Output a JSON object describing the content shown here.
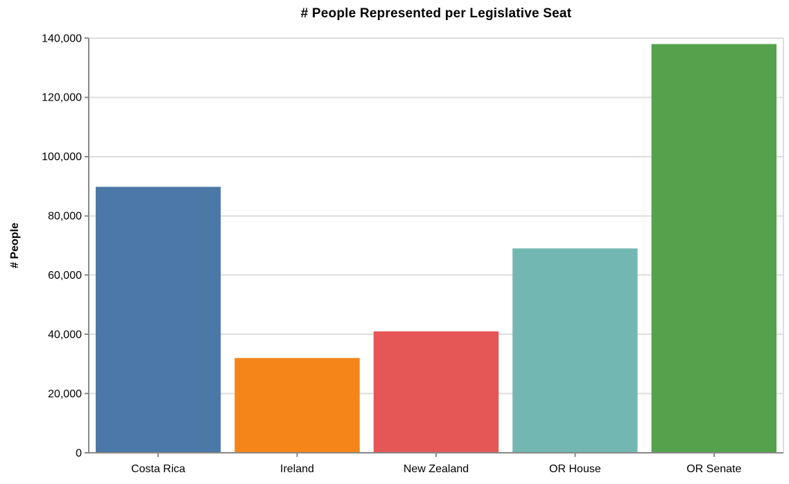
{
  "chart_data": {
    "type": "bar",
    "title": "# People Represented per Legislative Seat",
    "xlabel": "",
    "ylabel": "# People",
    "categories": [
      "Costa Rica",
      "Ireland",
      "New Zealand",
      "OR House",
      "OR Senate"
    ],
    "values": [
      89800,
      32000,
      41000,
      69000,
      138000
    ],
    "bar_colors": [
      "#4c78a8",
      "#f58518",
      "#e45756",
      "#72b7b2",
      "#54a24b"
    ],
    "ylim": [
      0,
      140000
    ],
    "yticks": [
      0,
      20000,
      40000,
      60000,
      80000,
      100000,
      120000,
      140000
    ],
    "ytick_labels": [
      "0",
      "20,000",
      "40,000",
      "60,000",
      "80,000",
      "100,000",
      "120,000",
      "140,000"
    ],
    "grid": true,
    "legend": false,
    "colors": {
      "gridline": "#dddddd",
      "domain_line": "#888888",
      "tick_mark": "#888888",
      "background": "#ffffff",
      "text": "#000000"
    }
  }
}
